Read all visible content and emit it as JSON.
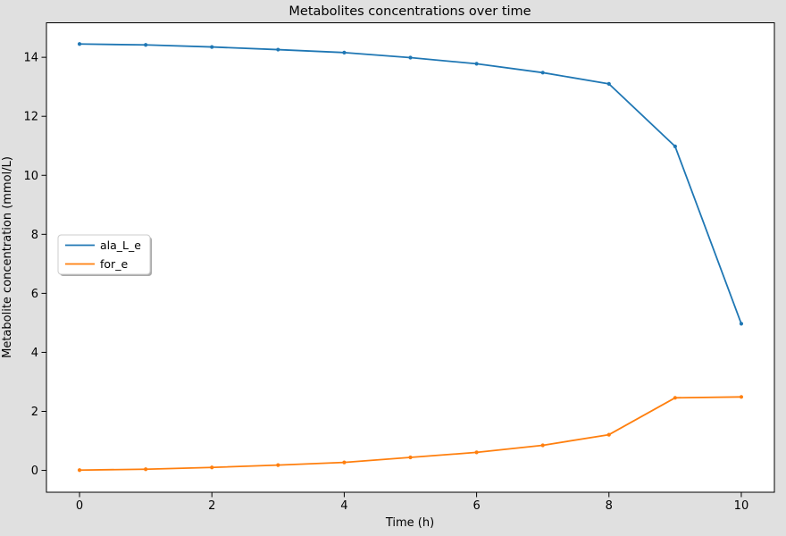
{
  "figure": {
    "background_color": "#e0e0e0",
    "plot_background_color": "#ffffff",
    "spine_color": "#000000",
    "tick_color": "#000000"
  },
  "chart_data": {
    "type": "line",
    "title": "Metabolites concentrations over time",
    "xlabel": "Time (h)",
    "ylabel": "Metabolite concentration (mmol/L)",
    "x": [
      0,
      1,
      2,
      3,
      4,
      5,
      6,
      7,
      8,
      9,
      10
    ],
    "series": [
      {
        "name": "ala_L_e",
        "color": "#1f77b4",
        "marker": "point",
        "values": [
          14.45,
          14.42,
          14.35,
          14.26,
          14.16,
          13.99,
          13.78,
          13.48,
          13.1,
          10.98,
          4.97
        ]
      },
      {
        "name": "for_e",
        "color": "#ff7f0e",
        "marker": "point",
        "values": [
          0.01,
          0.04,
          0.1,
          0.18,
          0.27,
          0.44,
          0.61,
          0.85,
          1.21,
          2.46,
          2.49
        ]
      }
    ],
    "xticks": {
      "values": [
        0,
        2,
        4,
        6,
        8,
        10
      ],
      "labels": [
        "0",
        "2",
        "4",
        "6",
        "8",
        "10"
      ]
    },
    "yticks": {
      "values": [
        0,
        2,
        4,
        6,
        8,
        10,
        12,
        14
      ],
      "labels": [
        "0",
        "2",
        "4",
        "6",
        "8",
        "10",
        "12",
        "14"
      ]
    },
    "xlim": [
      -0.5,
      10.5
    ],
    "ylim": [
      -0.74,
      15.17
    ],
    "grid": false,
    "legend": {
      "position": "center-left",
      "entries": [
        "ala_L_e",
        "for_e"
      ],
      "background_color": "#ffffff",
      "border_color": "#cccccc",
      "shadow_color": "#a9a9a9"
    }
  }
}
